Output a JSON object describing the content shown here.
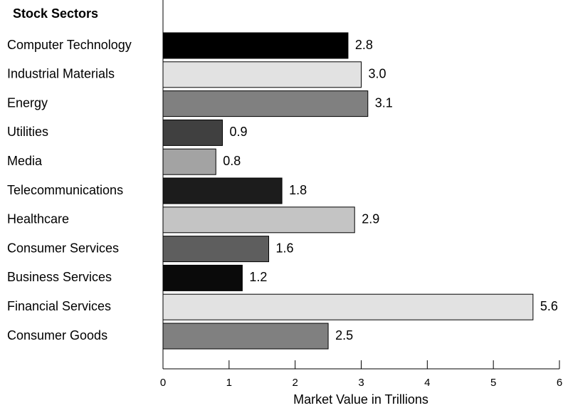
{
  "chart_data": {
    "type": "bar",
    "orientation": "horizontal",
    "title": "Stock Sectors",
    "xlabel": "Market Value in Trillions",
    "categories": [
      "Computer Technology",
      "Industrial Materials",
      "Energy",
      "Utilities",
      "Media",
      "Telecommunications",
      "Healthcare",
      "Consumer Services",
      "Business Services",
      "Financial Services",
      "Consumer Goods"
    ],
    "values": [
      2.8,
      3.0,
      3.1,
      0.9,
      0.8,
      1.8,
      2.9,
      1.6,
      1.2,
      5.6,
      2.5
    ],
    "value_labels": [
      "2.8",
      "3.0",
      "3.1",
      "0.9",
      "0.8",
      "1.8",
      "2.9",
      "1.6",
      "1.2",
      "5.6",
      "2.5"
    ],
    "colors": [
      "#000000",
      "#e2e2e2",
      "#808080",
      "#404040",
      "#a3a3a3",
      "#1c1c1c",
      "#c4c4c4",
      "#5e5e5e",
      "#0a0a0a",
      "#e2e2e2",
      "#808080"
    ],
    "xlim": [
      0,
      6
    ],
    "xticks": [
      0,
      1,
      2,
      3,
      4,
      5,
      6
    ],
    "grid": false
  }
}
